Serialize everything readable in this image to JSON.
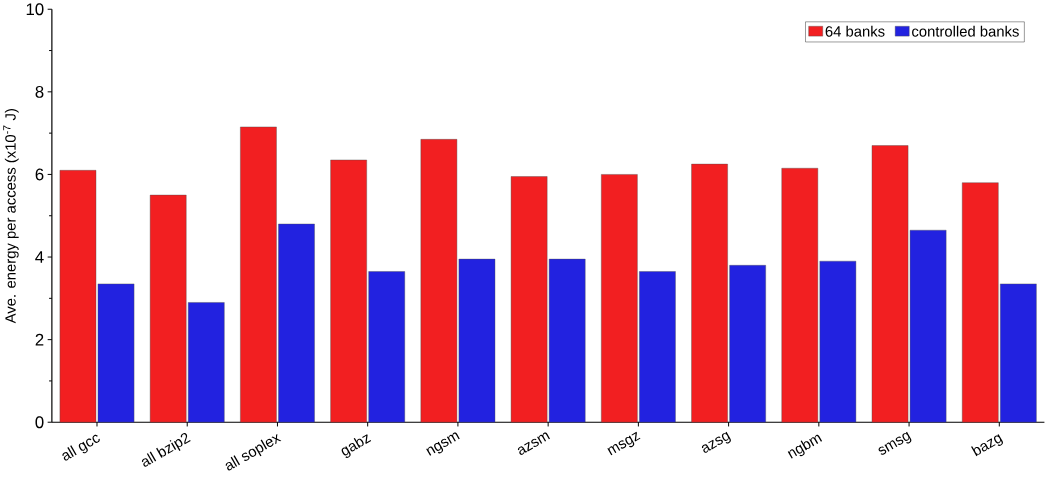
{
  "chart_data": {
    "type": "bar",
    "ylabel": "Ave. energy per access (x10$^{-7}$ J)",
    "categories": [
      "all gcc",
      "all bzip2",
      "all soplex",
      "gabz",
      "ngsm",
      "azsm",
      "msgz",
      "azsg",
      "ngbm",
      "smsg",
      "bazg"
    ],
    "series": [
      {
        "name": "64 banks",
        "color": "#f21f21",
        "values": [
          6.1,
          5.5,
          7.15,
          6.35,
          6.85,
          5.95,
          6.0,
          6.25,
          6.15,
          6.7,
          5.8
        ]
      },
      {
        "name": "controlled banks",
        "color": "#2222e0",
        "values": [
          3.35,
          2.9,
          4.8,
          3.65,
          3.95,
          3.95,
          3.65,
          3.8,
          3.9,
          4.65,
          3.35
        ]
      }
    ],
    "ylim": [
      0,
      10
    ],
    "yticks": [
      0,
      2,
      4,
      6,
      8,
      10
    ],
    "legend": "top right"
  }
}
